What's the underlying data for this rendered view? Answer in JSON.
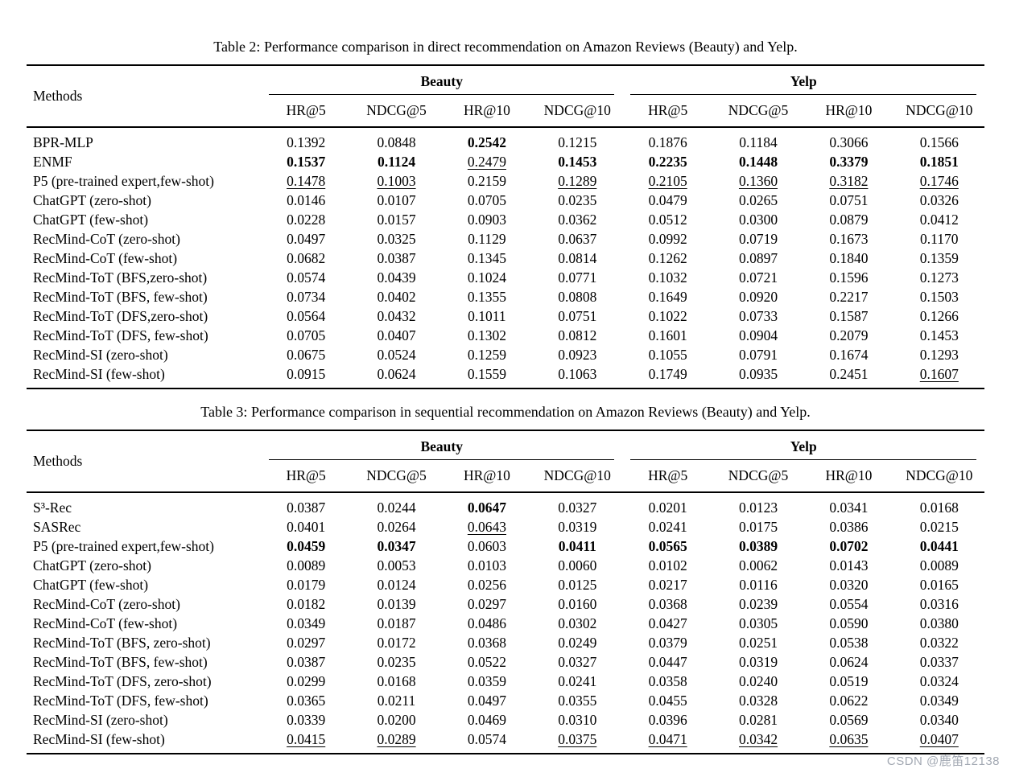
{
  "watermark": {
    "text": "CSDN @鹿笛12138",
    "color": "#a3a9b3"
  },
  "tables": [
    {
      "caption": "Table 2: Performance comparison in direct recommendation on Amazon Reviews (Beauty) and Yelp.",
      "methods_label": "Methods",
      "groups": [
        "Beauty",
        "Yelp"
      ],
      "subheaders": [
        "HR@5",
        "NDCG@5",
        "HR@10",
        "NDCG@10",
        "HR@5",
        "NDCG@5",
        "HR@10",
        "NDCG@10"
      ],
      "rows": [
        {
          "method": "BPR-MLP",
          "values": [
            "0.1392",
            "0.0848",
            "0.2542",
            "0.1215",
            "0.1876",
            "0.1184",
            "0.3066",
            "0.1566"
          ],
          "styles": [
            "",
            "",
            "b",
            "",
            "",
            "",
            "",
            ""
          ]
        },
        {
          "method": "ENMF",
          "values": [
            "0.1537",
            "0.1124",
            "0.2479",
            "0.1453",
            "0.2235",
            "0.1448",
            "0.3379",
            "0.1851"
          ],
          "styles": [
            "b",
            "b",
            "u",
            "b",
            "b",
            "b",
            "b",
            "b"
          ]
        },
        {
          "method": "P5 (pre-trained expert,few-shot)",
          "values": [
            "0.1478",
            "0.1003",
            "0.2159",
            "0.1289",
            "0.2105",
            "0.1360",
            "0.3182",
            "0.1746"
          ],
          "styles": [
            "u",
            "u",
            "",
            "u",
            "u",
            "u",
            "u",
            "u"
          ]
        },
        {
          "method": "ChatGPT (zero-shot)",
          "values": [
            "0.0146",
            "0.0107",
            "0.0705",
            "0.0235",
            "0.0479",
            "0.0265",
            "0.0751",
            "0.0326"
          ],
          "styles": [
            "",
            "",
            "",
            "",
            "",
            "",
            "",
            ""
          ]
        },
        {
          "method": "ChatGPT (few-shot)",
          "values": [
            "0.0228",
            "0.0157",
            "0.0903",
            "0.0362",
            "0.0512",
            "0.0300",
            "0.0879",
            "0.0412"
          ],
          "styles": [
            "",
            "",
            "",
            "",
            "",
            "",
            "",
            ""
          ]
        },
        {
          "method": "RecMind-CoT (zero-shot)",
          "values": [
            "0.0497",
            "0.0325",
            "0.1129",
            "0.0637",
            "0.0992",
            "0.0719",
            "0.1673",
            "0.1170"
          ],
          "styles": [
            "",
            "",
            "",
            "",
            "",
            "",
            "",
            ""
          ]
        },
        {
          "method": "RecMind-CoT (few-shot)",
          "values": [
            "0.0682",
            "0.0387",
            "0.1345",
            "0.0814",
            "0.1262",
            "0.0897",
            "0.1840",
            "0.1359"
          ],
          "styles": [
            "",
            "",
            "",
            "",
            "",
            "",
            "",
            ""
          ]
        },
        {
          "method": "RecMind-ToT (BFS,zero-shot)",
          "values": [
            "0.0574",
            "0.0439",
            "0.1024",
            "0.0771",
            "0.1032",
            "0.0721",
            "0.1596",
            "0.1273"
          ],
          "styles": [
            "",
            "",
            "",
            "",
            "",
            "",
            "",
            ""
          ]
        },
        {
          "method": "RecMind-ToT (BFS, few-shot)",
          "values": [
            "0.0734",
            "0.0402",
            "0.1355",
            "0.0808",
            "0.1649",
            "0.0920",
            "0.2217",
            "0.1503"
          ],
          "styles": [
            "",
            "",
            "",
            "",
            "",
            "",
            "",
            ""
          ]
        },
        {
          "method": "RecMind-ToT (DFS,zero-shot)",
          "values": [
            "0.0564",
            "0.0432",
            "0.1011",
            "0.0751",
            "0.1022",
            "0.0733",
            "0.1587",
            "0.1266"
          ],
          "styles": [
            "",
            "",
            "",
            "",
            "",
            "",
            "",
            ""
          ]
        },
        {
          "method": "RecMind-ToT (DFS, few-shot)",
          "values": [
            "0.0705",
            "0.0407",
            "0.1302",
            "0.0812",
            "0.1601",
            "0.0904",
            "0.2079",
            "0.1453"
          ],
          "styles": [
            "",
            "",
            "",
            "",
            "",
            "",
            "",
            ""
          ]
        },
        {
          "method": "RecMind-SI (zero-shot)",
          "values": [
            "0.0675",
            "0.0524",
            "0.1259",
            "0.0923",
            "0.1055",
            "0.0791",
            "0.1674",
            "0.1293"
          ],
          "styles": [
            "",
            "",
            "",
            "",
            "",
            "",
            "",
            ""
          ]
        },
        {
          "method": "RecMind-SI (few-shot)",
          "values": [
            "0.0915",
            "0.0624",
            "0.1559",
            "0.1063",
            "0.1749",
            "0.0935",
            "0.2451",
            "0.1607"
          ],
          "styles": [
            "",
            "",
            "",
            "",
            "",
            "",
            "",
            "u"
          ]
        }
      ]
    },
    {
      "caption": "Table 3: Performance comparison in sequential recommendation on Amazon Reviews (Beauty) and Yelp.",
      "methods_label": "Methods",
      "groups": [
        "Beauty",
        "Yelp"
      ],
      "subheaders": [
        "HR@5",
        "NDCG@5",
        "HR@10",
        "NDCG@10",
        "HR@5",
        "NDCG@5",
        "HR@10",
        "NDCG@10"
      ],
      "rows": [
        {
          "method": "S³-Rec",
          "values": [
            "0.0387",
            "0.0244",
            "0.0647",
            "0.0327",
            "0.0201",
            "0.0123",
            "0.0341",
            "0.0168"
          ],
          "styles": [
            "",
            "",
            "b",
            "",
            "",
            "",
            "",
            ""
          ]
        },
        {
          "method": "SASRec",
          "values": [
            "0.0401",
            "0.0264",
            "0.0643",
            "0.0319",
            "0.0241",
            "0.0175",
            "0.0386",
            "0.0215"
          ],
          "styles": [
            "",
            "",
            "u",
            "",
            "",
            "",
            "",
            ""
          ]
        },
        {
          "method": "P5 (pre-trained expert,few-shot)",
          "values": [
            "0.0459",
            "0.0347",
            "0.0603",
            "0.0411",
            "0.0565",
            "0.0389",
            "0.0702",
            "0.0441"
          ],
          "styles": [
            "b",
            "b",
            "",
            "b",
            "b",
            "b",
            "b",
            "b"
          ]
        },
        {
          "method": "ChatGPT (zero-shot)",
          "values": [
            "0.0089",
            "0.0053",
            "0.0103",
            "0.0060",
            "0.0102",
            "0.0062",
            "0.0143",
            "0.0089"
          ],
          "styles": [
            "",
            "",
            "",
            "",
            "",
            "",
            "",
            ""
          ]
        },
        {
          "method": "ChatGPT (few-shot)",
          "values": [
            "0.0179",
            "0.0124",
            "0.0256",
            "0.0125",
            "0.0217",
            "0.0116",
            "0.0320",
            "0.0165"
          ],
          "styles": [
            "",
            "",
            "",
            "",
            "",
            "",
            "",
            ""
          ]
        },
        {
          "method": "RecMind-CoT (zero-shot)",
          "values": [
            "0.0182",
            "0.0139",
            "0.0297",
            "0.0160",
            "0.0368",
            "0.0239",
            "0.0554",
            "0.0316"
          ],
          "styles": [
            "",
            "",
            "",
            "",
            "",
            "",
            "",
            ""
          ]
        },
        {
          "method": "RecMind-CoT (few-shot)",
          "values": [
            "0.0349",
            "0.0187",
            "0.0486",
            "0.0302",
            "0.0427",
            "0.0305",
            "0.0590",
            "0.0380"
          ],
          "styles": [
            "",
            "",
            "",
            "",
            "",
            "",
            "",
            ""
          ]
        },
        {
          "method": "RecMind-ToT (BFS, zero-shot)",
          "values": [
            "0.0297",
            "0.0172",
            "0.0368",
            "0.0249",
            "0.0379",
            "0.0251",
            "0.0538",
            "0.0322"
          ],
          "styles": [
            "",
            "",
            "",
            "",
            "",
            "",
            "",
            ""
          ]
        },
        {
          "method": "RecMind-ToT (BFS, few-shot)",
          "values": [
            "0.0387",
            "0.0235",
            "0.0522",
            "0.0327",
            "0.0447",
            "0.0319",
            "0.0624",
            "0.0337"
          ],
          "styles": [
            "",
            "",
            "",
            "",
            "",
            "",
            "",
            ""
          ]
        },
        {
          "method": "RecMind-ToT (DFS, zero-shot)",
          "values": [
            "0.0299",
            "0.0168",
            "0.0359",
            "0.0241",
            "0.0358",
            "0.0240",
            "0.0519",
            "0.0324"
          ],
          "styles": [
            "",
            "",
            "",
            "",
            "",
            "",
            "",
            ""
          ]
        },
        {
          "method": "RecMind-ToT (DFS, few-shot)",
          "values": [
            "0.0365",
            "0.0211",
            "0.0497",
            "0.0355",
            "0.0455",
            "0.0328",
            "0.0622",
            "0.0349"
          ],
          "styles": [
            "",
            "",
            "",
            "",
            "",
            "",
            "",
            ""
          ]
        },
        {
          "method": "RecMind-SI (zero-shot)",
          "values": [
            "0.0339",
            "0.0200",
            "0.0469",
            "0.0310",
            "0.0396",
            "0.0281",
            "0.0569",
            "0.0340"
          ],
          "styles": [
            "",
            "",
            "",
            "",
            "",
            "",
            "",
            ""
          ]
        },
        {
          "method": "RecMind-SI (few-shot)",
          "values": [
            "0.0415",
            "0.0289",
            "0.0574",
            "0.0375",
            "0.0471",
            "0.0342",
            "0.0635",
            "0.0407"
          ],
          "styles": [
            "u",
            "u",
            "",
            "u",
            "u",
            "u",
            "u",
            "u"
          ]
        }
      ]
    }
  ]
}
